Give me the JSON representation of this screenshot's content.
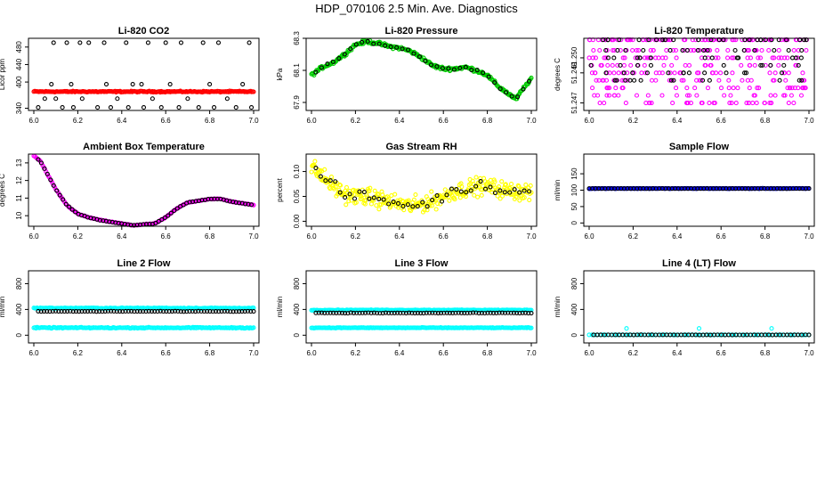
{
  "title": "HDP_070106  2.5 Min. Ave. Diagnostics",
  "colors": {
    "red": "#ff0000",
    "green": "#00cc00",
    "magenta": "#ff00ff",
    "yellow": "#ffff00",
    "blue": "#0000ff",
    "cyan": "#00ffff",
    "black": "#000000"
  },
  "chart_data": [
    {
      "type": "scatter",
      "title": "Li-820 CO2",
      "ylabel": "Licor ppm",
      "xlim": [
        6.0,
        7.0
      ],
      "ylim": [
        335,
        500
      ],
      "xticks": [
        "6.0",
        "6.2",
        "6.4",
        "6.6",
        "6.8",
        "7.0"
      ],
      "yticks": [
        {
          "v": 340,
          "label": "340"
        },
        {
          "v": 400,
          "label": "400"
        },
        {
          "v": 440,
          "label": "440"
        },
        {
          "v": 480,
          "label": "480"
        }
      ],
      "series": [
        {
          "color": "red",
          "kind": "band",
          "x0": 6.0,
          "x1": 7.0,
          "y": 378,
          "jitter": 2,
          "n": 220
        },
        {
          "color": "black",
          "kind": "points",
          "x": [
            6.02,
            6.05,
            6.08,
            6.09,
            6.1,
            6.13,
            6.15,
            6.17,
            6.18,
            6.21,
            6.22,
            6.25,
            6.29,
            6.32,
            6.33,
            6.35,
            6.38,
            6.42,
            6.43,
            6.45,
            6.49,
            6.5,
            6.52,
            6.54,
            6.58,
            6.6,
            6.62,
            6.66,
            6.67,
            6.7,
            6.75,
            6.77,
            6.8,
            6.82,
            6.84,
            6.88,
            6.92,
            6.95,
            6.98,
            6.99
          ],
          "y": [
            342,
            362,
            395,
            490,
            362,
            342,
            490,
            395,
            342,
            490,
            362,
            490,
            342,
            490,
            395,
            342,
            362,
            490,
            342,
            395,
            395,
            342,
            490,
            362,
            342,
            490,
            395,
            342,
            490,
            362,
            342,
            490,
            395,
            342,
            490,
            362,
            342,
            395,
            490,
            342
          ]
        }
      ]
    },
    {
      "type": "scatter",
      "title": "Li-820 Pressure",
      "ylabel": "kPa",
      "xlim": [
        6.0,
        7.0
      ],
      "ylim": [
        67.85,
        68.3
      ],
      "xticks": [
        "6.0",
        "6.2",
        "6.4",
        "6.6",
        "6.8",
        "7.0"
      ],
      "yticks": [
        {
          "v": 67.9,
          "label": "67.9"
        },
        {
          "v": 68.1,
          "label": "68.1"
        },
        {
          "v": 68.3,
          "label": "68.3"
        }
      ],
      "series": [
        {
          "color": "green",
          "kind": "path",
          "jitter": 0.015,
          "n": 260,
          "x": [
            6.0,
            6.05,
            6.1,
            6.15,
            6.2,
            6.25,
            6.3,
            6.35,
            6.4,
            6.45,
            6.5,
            6.55,
            6.6,
            6.65,
            6.7,
            6.75,
            6.8,
            6.85,
            6.9,
            6.93,
            6.96,
            7.0
          ],
          "y": [
            68.07,
            68.12,
            68.15,
            68.2,
            68.26,
            68.28,
            68.27,
            68.25,
            68.24,
            68.22,
            68.18,
            68.13,
            68.11,
            68.11,
            68.12,
            68.1,
            68.07,
            68.0,
            67.95,
            67.92,
            67.98,
            68.05
          ]
        },
        {
          "color": "black",
          "kind": "pathpts",
          "n": 38
        }
      ]
    },
    {
      "type": "scatter",
      "title": "Li-820 Temperature",
      "ylabel": "degrees C",
      "xlim": [
        6.0,
        7.0
      ],
      "ylim": [
        51.2465,
        51.2513
      ],
      "xticks": [
        "6.0",
        "6.2",
        "6.4",
        "6.6",
        "6.8",
        "7.0"
      ],
      "yticks": [
        {
          "v": 51.247,
          "label": "51.247"
        },
        {
          "v": 51.249,
          "label": "51.249"
        },
        {
          "v": 51.25,
          "label": "51.250"
        }
      ],
      "series": [
        {
          "color": "magenta",
          "kind": "levels",
          "n": 330,
          "levels": [
            51.2512,
            51.2505,
            51.25,
            51.2495,
            51.249,
            51.2485,
            51.248,
            51.2475,
            51.247
          ]
        },
        {
          "color": "black",
          "kind": "levels",
          "n": 90,
          "levels": [
            51.2512,
            51.2505,
            51.25,
            51.2495,
            51.249,
            51.2485
          ]
        }
      ]
    },
    {
      "type": "scatter",
      "title": "Ambient Box Temperature",
      "ylabel": "degrees C",
      "xlim": [
        6.0,
        7.0
      ],
      "ylim": [
        9.4,
        13.5
      ],
      "xticks": [
        "6.0",
        "6.2",
        "6.4",
        "6.6",
        "6.8",
        "7.0"
      ],
      "yticks": [
        {
          "v": 10,
          "label": "10"
        },
        {
          "v": 11,
          "label": "11"
        },
        {
          "v": 12,
          "label": "12"
        },
        {
          "v": 13,
          "label": "13"
        }
      ],
      "series": [
        {
          "color": "magenta",
          "kind": "path",
          "jitter": 0.03,
          "n": 200,
          "x": [
            6.0,
            6.03,
            6.06,
            6.1,
            6.15,
            6.2,
            6.25,
            6.3,
            6.35,
            6.4,
            6.45,
            6.5,
            6.55,
            6.6,
            6.65,
            6.7,
            6.75,
            6.8,
            6.85,
            6.9,
            6.95,
            7.0
          ],
          "y": [
            13.4,
            13.1,
            12.4,
            11.5,
            10.6,
            10.1,
            9.9,
            9.75,
            9.65,
            9.55,
            9.45,
            9.5,
            9.55,
            9.9,
            10.4,
            10.75,
            10.85,
            10.95,
            10.95,
            10.8,
            10.7,
            10.6
          ]
        },
        {
          "color": "black",
          "kind": "pathpts",
          "n": 70
        }
      ]
    },
    {
      "type": "scatter",
      "title": "Gas Stream RH",
      "ylabel": "percent",
      "xlim": [
        6.0,
        7.0
      ],
      "ylim": [
        -0.01,
        0.135
      ],
      "xticks": [
        "6.0",
        "6.2",
        "6.4",
        "6.6",
        "6.8",
        "7.0"
      ],
      "yticks": [
        {
          "v": 0.0,
          "label": "0.00"
        },
        {
          "v": 0.05,
          "label": "0.05"
        },
        {
          "v": 0.1,
          "label": "0.10"
        }
      ],
      "series": [
        {
          "color": "yellow",
          "kind": "path",
          "jitter": 0.025,
          "n": 320,
          "x": [
            6.0,
            6.05,
            6.1,
            6.15,
            6.2,
            6.25,
            6.3,
            6.35,
            6.4,
            6.45,
            6.5,
            6.55,
            6.6,
            6.65,
            6.7,
            6.75,
            6.8,
            6.85,
            6.9,
            6.95,
            7.0
          ],
          "y": [
            0.11,
            0.09,
            0.07,
            0.055,
            0.05,
            0.05,
            0.045,
            0.04,
            0.035,
            0.03,
            0.035,
            0.04,
            0.05,
            0.06,
            0.065,
            0.07,
            0.07,
            0.065,
            0.06,
            0.06,
            0.06
          ]
        },
        {
          "color": "black",
          "kind": "pathpts",
          "n": 45
        }
      ]
    },
    {
      "type": "scatter",
      "title": "Sample Flow",
      "ylabel": "ml/min",
      "xlim": [
        6.0,
        7.0
      ],
      "ylim": [
        -10,
        210
      ],
      "xticks": [
        "6.0",
        "6.2",
        "6.4",
        "6.6",
        "6.8",
        "7.0"
      ],
      "yticks": [
        {
          "v": 0,
          "label": "0"
        },
        {
          "v": 50,
          "label": "50"
        },
        {
          "v": 100,
          "label": "100"
        },
        {
          "v": 150,
          "label": "150"
        }
      ],
      "series": [
        {
          "color": "blue",
          "kind": "band",
          "x0": 6.0,
          "x1": 7.0,
          "y": 105,
          "jitter": 1,
          "n": 200
        },
        {
          "color": "black",
          "kind": "band",
          "x0": 6.0,
          "x1": 7.0,
          "y": 105,
          "jitter": 0.5,
          "n": 70
        }
      ]
    },
    {
      "type": "scatter",
      "title": "Line 2 Flow",
      "ylabel": "ml/min",
      "xlim": [
        6.0,
        7.0
      ],
      "ylim": [
        -120,
        1000
      ],
      "xticks": [
        "6.0",
        "6.2",
        "6.4",
        "6.6",
        "6.8",
        "7.0"
      ],
      "yticks": [
        {
          "v": 0,
          "label": "0"
        },
        {
          "v": 400,
          "label": "400"
        },
        {
          "v": 800,
          "label": "800"
        }
      ],
      "series": [
        {
          "color": "cyan",
          "kind": "band",
          "x0": 6.0,
          "x1": 7.0,
          "y": 420,
          "jitter": 10,
          "n": 200
        },
        {
          "color": "cyan",
          "kind": "band",
          "x0": 6.0,
          "x1": 7.0,
          "y": 115,
          "jitter": 12,
          "n": 200
        },
        {
          "color": "black",
          "kind": "band",
          "x0": 6.02,
          "x1": 7.0,
          "y": 370,
          "jitter": 5,
          "n": 75
        }
      ]
    },
    {
      "type": "scatter",
      "title": "Line 3 Flow",
      "ylabel": "ml/min",
      "xlim": [
        6.0,
        7.0
      ],
      "ylim": [
        -120,
        1000
      ],
      "xticks": [
        "6.0",
        "6.2",
        "6.4",
        "6.6",
        "6.8",
        "7.0"
      ],
      "yticks": [
        {
          "v": 0,
          "label": "0"
        },
        {
          "v": 400,
          "label": "400"
        },
        {
          "v": 800,
          "label": "800"
        }
      ],
      "series": [
        {
          "color": "cyan",
          "kind": "band",
          "x0": 6.0,
          "x1": 7.0,
          "y": 390,
          "jitter": 8,
          "n": 200
        },
        {
          "color": "cyan",
          "kind": "band",
          "x0": 6.0,
          "x1": 7.0,
          "y": 115,
          "jitter": 8,
          "n": 200
        },
        {
          "color": "black",
          "kind": "band",
          "x0": 6.02,
          "x1": 7.0,
          "y": 345,
          "jitter": 5,
          "n": 75
        }
      ]
    },
    {
      "type": "scatter",
      "title": "Line 4 (LT) Flow",
      "ylabel": "ml/min",
      "xlim": [
        6.0,
        7.0
      ],
      "ylim": [
        -120,
        1000
      ],
      "xticks": [
        "6.0",
        "6.2",
        "6.4",
        "6.6",
        "6.8",
        "7.0"
      ],
      "yticks": [
        {
          "v": 0,
          "label": "0"
        },
        {
          "v": 400,
          "label": "400"
        },
        {
          "v": 800,
          "label": "800"
        }
      ],
      "series": [
        {
          "color": "cyan",
          "kind": "band",
          "x0": 6.0,
          "x1": 7.0,
          "y": 5,
          "jitter": 3,
          "n": 80
        },
        {
          "color": "cyan",
          "kind": "points",
          "x": [
            6.17,
            6.5,
            6.83
          ],
          "y": [
            105,
            105,
            105
          ]
        },
        {
          "color": "black",
          "kind": "band",
          "x0": 6.02,
          "x1": 7.0,
          "y": 5,
          "jitter": 2,
          "n": 60
        }
      ]
    }
  ]
}
